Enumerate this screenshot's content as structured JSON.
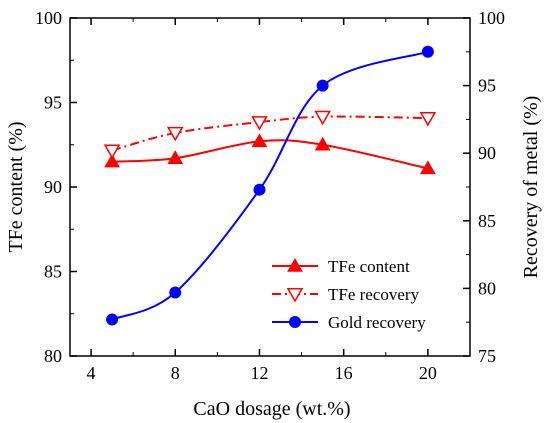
{
  "chart_data": {
    "type": "line",
    "xlabel": "CaO dosage (wt.%)",
    "ylabel_left": "TFe content (%)",
    "ylabel_right": "Recovery of metal (%)",
    "xlim": [
      3,
      22
    ],
    "ylim_left": [
      80,
      100
    ],
    "ylim_right": [
      75,
      100
    ],
    "xticks": [
      4,
      8,
      12,
      16,
      20
    ],
    "yticks_left": [
      80,
      85,
      90,
      95,
      100
    ],
    "yticks_right": [
      75,
      80,
      85,
      90,
      95,
      100
    ],
    "legend_position": "lower-right",
    "series": [
      {
        "name": "TFe content",
        "axis": "left",
        "marker": "triangle-filled",
        "line_style": "solid",
        "color": "#ff0000",
        "x": [
          5,
          8,
          12,
          15,
          20
        ],
        "y": [
          91.5,
          91.7,
          92.7,
          92.5,
          91.1
        ]
      },
      {
        "name": "TFe recovery",
        "axis": "right",
        "marker": "triangle-down-open",
        "line_style": "dash-dot",
        "color": "#ff0000",
        "x": [
          5,
          8,
          12,
          15,
          20
        ],
        "y": [
          90.2,
          91.5,
          92.3,
          92.7,
          92.6
        ]
      },
      {
        "name": "Gold recovery",
        "axis": "right",
        "marker": "circle-filled",
        "line_style": "solid",
        "color": "#0000ff",
        "x": [
          5,
          8,
          12,
          15,
          20
        ],
        "y": [
          77.7,
          79.7,
          87.3,
          95.0,
          97.5
        ]
      }
    ]
  }
}
